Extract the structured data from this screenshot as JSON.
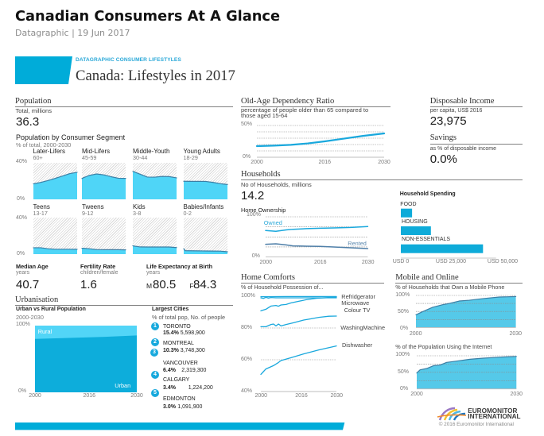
{
  "header": {
    "title": "Canadian Consumers At A Glance",
    "subtitle": "Datagraphic | 19 Jun 2017"
  },
  "banner": {
    "kicker": "DATAGRAPHIC CONSUMER LIFESTYLES",
    "title": "Canada: Lifestyles in 2017"
  },
  "colors": {
    "accent": "#00acd9",
    "kicker": "#29a8d8",
    "area_fill": "#4fd5f7",
    "area_line": "#3c7fa5",
    "line": "#19a8dd",
    "rented": "#4f7fa8",
    "owned_label": "#2aa8d8",
    "rented_label": "#5b87ad",
    "bar": "#0eabd9",
    "urban": "#0daddb",
    "rural": "#52d5f7",
    "online_fill": "#55c9e9",
    "badge": "#17a9dd"
  },
  "population": {
    "heading": "Population",
    "total_label": "Total, millions",
    "total_value": "36.3"
  },
  "stats": {
    "median_age": {
      "label": "Median Age",
      "unit": "years",
      "value": "40.7"
    },
    "fertility_rate": {
      "label": "Fertility Rate",
      "unit": "children/female",
      "value": "1.6"
    },
    "life_expectancy": {
      "label": "Life Expectancy at Birth",
      "unit": "years",
      "male_marker": "M",
      "male_value": "80.5",
      "female_marker": "F",
      "female_value": "84.3"
    }
  },
  "urbanisation": {
    "heading": "Urbanisation"
  },
  "largest_cities": {
    "title": "Largest Cities",
    "subtitle": "% of total pop, No. of people",
    "items": [
      {
        "rank": "1",
        "name": "TORONTO",
        "share": "15.4%",
        "people": "5,598,900"
      },
      {
        "rank": "2",
        "name": "MONTREAL",
        "share": "10.3%",
        "people": "3,748,300"
      },
      {
        "rank": "3",
        "name": "VANCOUVER",
        "share": "6.4%",
        "people": "2,319,300"
      },
      {
        "rank": "4",
        "name": "CALGARY",
        "share": "3.4%",
        "people": "1,224,200"
      },
      {
        "rank": "5",
        "name": "EDMONTON",
        "share": "3.0%",
        "people": "1,091,900"
      }
    ]
  },
  "households": {
    "heading": "Households",
    "count_label": "No of Households, millions",
    "count_value": "14.2"
  },
  "disposable_income": {
    "heading": "Disposable Income",
    "label": "per capita, US$ 2016",
    "value": "23,975"
  },
  "savings": {
    "heading": "Savings",
    "label": "as % of disposable income",
    "value": "0.0%"
  },
  "mobile_online": {
    "heading": "Mobile and Online"
  },
  "footer": {
    "brand_line1": "EUROMONITOR",
    "brand_line2": "INTERNATIONAL",
    "copyright": "© 2016 Euromonitor International"
  },
  "chart_data": [
    {
      "id": "population-segments",
      "type": "area",
      "title": "Population by Consumer Segment",
      "subtitle": "% of total, 2000-2030",
      "xlim": [
        2000,
        2030
      ],
      "ylim": [
        0,
        40
      ],
      "ytick_labels": [
        "40%",
        "0%"
      ],
      "x": [
        2000,
        2001,
        2005,
        2010,
        2015,
        2020,
        2025,
        2030
      ],
      "series": [
        {
          "name": "Later-Lifers",
          "ages": "60+",
          "values": [
            17,
            17.3,
            18.5,
            20.6,
            23,
            25.6,
            28.2,
            29.6
          ]
        },
        {
          "name": "Mid-Lifers",
          "ages": "45-59",
          "values": [
            22.8,
            23.6,
            26.2,
            27.8,
            26.8,
            24.8,
            23.1,
            22.9
          ]
        },
        {
          "name": "Middle-Youth",
          "ages": "30-44",
          "values": [
            30.6,
            30.1,
            27.6,
            24.4,
            24.3,
            25.1,
            24.9,
            23.5
          ]
        },
        {
          "name": "Young Adults",
          "ages": "18-29",
          "values": [
            19.8,
            19.8,
            19.7,
            19.7,
            19.6,
            18.6,
            17.2,
            16.2
          ]
        },
        {
          "name": "Teens",
          "ages": "13-17",
          "values": [
            7,
            7,
            7,
            5.9,
            5.4,
            5.4,
            5.4,
            5.3
          ]
        },
        {
          "name": "Tweens",
          "ages": "9-12",
          "values": [
            6.4,
            6.4,
            5.9,
            5,
            4.9,
            4.9,
            4.9,
            4.7
          ]
        },
        {
          "name": "Kids",
          "ages": "3-8",
          "values": [
            9.2,
            8.8,
            7.9,
            7.8,
            7.8,
            7.8,
            7.8,
            7.2
          ]
        },
        {
          "name": "Babies/Infants",
          "ages": "0-2",
          "values": [
            6,
            3.8,
            3.7,
            3.6,
            3.5,
            3.4,
            3.3,
            2.6
          ]
        }
      ]
    },
    {
      "id": "old-age-dependency",
      "type": "line",
      "title": "Old-Age Dependency Ratio",
      "subtitle": "percentage of people older than 65 compared to those aged 15-64",
      "xlim": [
        2000,
        2030
      ],
      "ylim": [
        0,
        50
      ],
      "grid": [
        10,
        20,
        30,
        40,
        50
      ],
      "ytick_labels": [
        "50%",
        "0%"
      ],
      "xticks": [
        2000,
        2016,
        2030
      ],
      "xtick_labels": [
        "2000",
        "2016",
        "2030"
      ],
      "x": [
        2000,
        2004,
        2008,
        2012,
        2016,
        2020,
        2025,
        2030
      ],
      "series": [
        {
          "name": "Old-Age Dependency Ratio",
          "color": "#19a8dd",
          "values": [
            17.5,
            18.3,
            19.5,
            21.8,
            25,
            28.8,
            33.6,
            37.5
          ]
        }
      ]
    },
    {
      "id": "home-ownership",
      "type": "line",
      "title": "Home Ownership",
      "xlim": [
        2000,
        2030
      ],
      "ylim": [
        0,
        100
      ],
      "grid": [
        25,
        50,
        75,
        100
      ],
      "ytick_labels": [
        "100%",
        "0%"
      ],
      "xticks": [
        2000,
        2016,
        2030
      ],
      "xtick_labels": [
        "2000",
        "2016",
        "2030"
      ],
      "x": [
        2000,
        2003,
        2006,
        2008,
        2012,
        2016,
        2020,
        2025,
        2030
      ],
      "series": [
        {
          "name": "Owned",
          "color": "#19a8dd",
          "values": [
            65.8,
            64,
            67.3,
            69,
            70.5,
            71.7,
            72.4,
            73.5,
            75.7
          ]
        },
        {
          "name": "Rented",
          "color": "#4f7fa8",
          "values": [
            31.6,
            32.9,
            30,
            27.6,
            27,
            26.3,
            25,
            23,
            21
          ]
        }
      ]
    },
    {
      "id": "household-spending",
      "type": "bar",
      "orientation": "horizontal",
      "title": "Household Spending",
      "categories": [
        "FOOD",
        "HOUSING",
        "NON-ESSENTIALS"
      ],
      "values": [
        5600,
        15000,
        41000
      ],
      "unit": "USD",
      "xlim": [
        0,
        50000
      ],
      "xticks": [
        0,
        25000,
        50000
      ],
      "xtick_labels": [
        "USD 0",
        "USD 25,000",
        "USD 50,000"
      ]
    },
    {
      "id": "urban-rural",
      "type": "stacked-area",
      "title": "Urban vs Rural Population",
      "subtitle": "2000-2030",
      "xlim": [
        2000,
        2030
      ],
      "ylim": [
        0,
        100
      ],
      "ytick_labels": [
        "100%",
        "0%"
      ],
      "xticks": [
        2000,
        2016,
        2030
      ],
      "xtick_labels": [
        "2000",
        "2016",
        "2030"
      ],
      "x": [
        2000,
        2010,
        2016,
        2020,
        2030
      ],
      "series": [
        {
          "name": "Urban",
          "values": [
            80.1,
            81.6,
            82.4,
            83.1,
            85.2
          ]
        },
        {
          "name": "Rural",
          "values": [
            19.9,
            18.4,
            17.6,
            16.9,
            14.8
          ]
        }
      ]
    },
    {
      "id": "home-comforts",
      "type": "line",
      "title": "Home Comforts",
      "subtitle": "% of Household Possession of...",
      "xlim": [
        2000,
        2030
      ],
      "ylim": [
        40,
        100
      ],
      "grid": [
        60,
        80
      ],
      "ytick_labels": [
        "100%",
        "80%",
        "60%",
        "40%"
      ],
      "xticks": [
        2000,
        2016,
        2030
      ],
      "xtick_labels": [
        "2000",
        "2016",
        "2030"
      ],
      "series": [
        {
          "name": "Refridgerator",
          "color": "#19a8dd",
          "points": [
            [
              2000,
              99.7
            ],
            [
              2010,
              99.8
            ],
            [
              2020,
              99.8
            ],
            [
              2030,
              99.8
            ]
          ]
        },
        {
          "name": "Microwave",
          "color": "#19a8dd",
          "points": [
            [
              2000,
              90.8
            ],
            [
              2002,
              91.8
            ],
            [
              2004,
              93.8
            ],
            [
              2006,
              94.2
            ],
            [
              2007,
              93.7
            ],
            [
              2008,
              94.5
            ],
            [
              2010,
              94.8
            ],
            [
              2012,
              95.8
            ],
            [
              2015,
              96.8
            ],
            [
              2018,
              97.8
            ],
            [
              2022,
              98.7
            ],
            [
              2026,
              99.1
            ],
            [
              2030,
              99.5
            ]
          ]
        },
        {
          "name": "Colour TV",
          "color": "#19a8dd",
          "points": [
            [
              2000,
              99
            ],
            [
              2001,
              98.6
            ],
            [
              2002,
              99.3
            ],
            [
              2003,
              98.8
            ],
            [
              2004,
              99.2
            ],
            [
              2006,
              99
            ],
            [
              2030,
              99
            ]
          ]
        },
        {
          "name": "WashingMachine",
          "color": "#19a8dd",
          "points": [
            [
              2000,
              80.8
            ],
            [
              2002,
              80.8
            ],
            [
              2004,
              82.2
            ],
            [
              2005,
              82.5
            ],
            [
              2006,
              81.3
            ],
            [
              2007,
              82.5
            ],
            [
              2008,
              81.3
            ],
            [
              2010,
              82.2
            ],
            [
              2013,
              83.3
            ],
            [
              2017,
              85
            ],
            [
              2020,
              85.8
            ],
            [
              2023,
              86.7
            ],
            [
              2027,
              87.4
            ],
            [
              2030,
              87.5
            ]
          ]
        },
        {
          "name": "Dishwasher",
          "color": "#19a8dd",
          "points": [
            [
              2000,
              50.8
            ],
            [
              2001,
              52.5
            ],
            [
              2002,
              54.2
            ],
            [
              2005,
              56.3
            ],
            [
              2007,
              58.3
            ],
            [
              2008,
              59.5
            ],
            [
              2012,
              61.3
            ],
            [
              2017,
              63.7
            ],
            [
              2023,
              66.2
            ],
            [
              2030,
              68.7
            ]
          ]
        }
      ]
    },
    {
      "id": "mobile-phone",
      "type": "area",
      "title": "% of Households that Own a Mobile Phone",
      "xlim": [
        2000,
        2030
      ],
      "ylim": [
        0,
        100
      ],
      "grid": [
        25,
        50,
        75,
        100
      ],
      "ytick_labels": [
        "100%",
        "50%",
        "0%"
      ],
      "xticks": [
        2000,
        2030
      ],
      "xtick_labels": [
        "2000",
        "2030"
      ],
      "x": [
        2000,
        2002,
        2005,
        2008,
        2010,
        2013,
        2016,
        2020,
        2025,
        2030
      ],
      "series": [
        {
          "name": "Mobile Phone Ownership",
          "fill": "#55c9e9",
          "color": "#3c7fa5",
          "values": [
            39.6,
            49.5,
            63,
            71,
            75,
            82.6,
            85,
            90,
            95,
            96.5
          ]
        }
      ]
    },
    {
      "id": "internet-users",
      "type": "area",
      "title": "% of the Population Using the Internet",
      "xlim": [
        2000,
        2030
      ],
      "ylim": [
        0,
        100
      ],
      "grid": [
        25,
        50,
        75,
        100
      ],
      "ytick_labels": [
        "100%",
        "50%",
        "0%"
      ],
      "xticks": [
        2000,
        2030
      ],
      "xtick_labels": [
        "2000",
        "2030"
      ],
      "x": [
        2000,
        2001,
        2003,
        2005,
        2007,
        2009,
        2012,
        2016,
        2020,
        2025,
        2030
      ],
      "series": [
        {
          "name": "Internet Users",
          "fill": "#55c9e9",
          "color": "#3c7fa5",
          "values": [
            48,
            57.6,
            61.6,
            70,
            72,
            80,
            84,
            89.5,
            92.8,
            96,
            98
          ]
        }
      ]
    }
  ]
}
